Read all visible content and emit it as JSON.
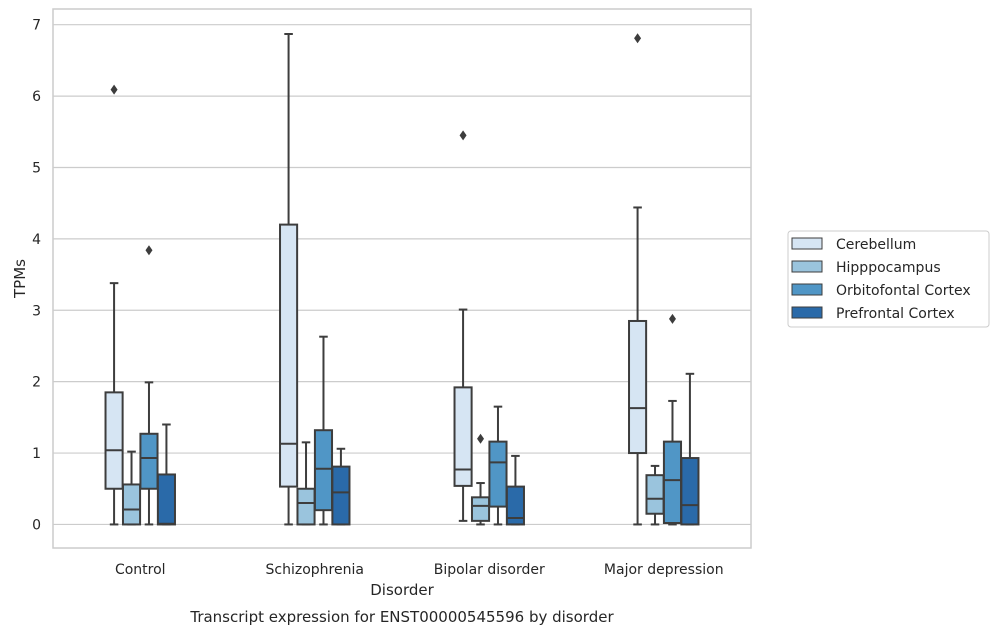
{
  "chart_data": {
    "type": "boxplot",
    "title": "Transcript expression for ENST00000545596 by disorder",
    "xlabel": "Disorder",
    "ylabel": "TPMs",
    "ylim": [
      -0.33,
      7.22
    ],
    "yticks": [
      0,
      1,
      2,
      3,
      4,
      5,
      6,
      7
    ],
    "categories": [
      "Control",
      "Schizophrenia",
      "Bipolar disorder",
      "Major depression"
    ],
    "grid": "horizontal",
    "legend_position": "right",
    "series": [
      {
        "name": "Cerebellum",
        "color": "#d6e5f3",
        "boxes": [
          {
            "whislo": 0.0,
            "q1": 0.5,
            "med": 1.04,
            "q3": 1.85,
            "whishi": 3.38,
            "fliers": [
              6.09
            ]
          },
          {
            "whislo": 0.0,
            "q1": 0.53,
            "med": 1.13,
            "q3": 4.2,
            "whishi": 6.87,
            "fliers": []
          },
          {
            "whislo": 0.05,
            "q1": 0.54,
            "med": 0.77,
            "q3": 1.92,
            "whishi": 3.01,
            "fliers": [
              5.45
            ]
          },
          {
            "whislo": 0.0,
            "q1": 1.0,
            "med": 1.63,
            "q3": 2.85,
            "whishi": 4.44,
            "fliers": [
              6.81
            ]
          }
        ]
      },
      {
        "name": "Hipppocampus",
        "color": "#9ac4dd",
        "boxes": [
          {
            "whislo": 0.0,
            "q1": 0.0,
            "med": 0.21,
            "q3": 0.56,
            "whishi": 1.02,
            "fliers": []
          },
          {
            "whislo": 0.0,
            "q1": 0.0,
            "med": 0.3,
            "q3": 0.5,
            "whishi": 1.15,
            "fliers": []
          },
          {
            "whislo": 0.0,
            "q1": 0.05,
            "med": 0.26,
            "q3": 0.38,
            "whishi": 0.58,
            "fliers": [
              1.2
            ]
          },
          {
            "whislo": 0.0,
            "q1": 0.15,
            "med": 0.36,
            "q3": 0.69,
            "whishi": 0.82,
            "fliers": []
          }
        ]
      },
      {
        "name": "Orbitofontal Cortex",
        "color": "#5096c6",
        "boxes": [
          {
            "whislo": 0.0,
            "q1": 0.5,
            "med": 0.93,
            "q3": 1.27,
            "whishi": 1.99,
            "fliers": [
              3.84
            ]
          },
          {
            "whislo": 0.0,
            "q1": 0.2,
            "med": 0.78,
            "q3": 1.32,
            "whishi": 2.63,
            "fliers": []
          },
          {
            "whislo": 0.0,
            "q1": 0.25,
            "med": 0.87,
            "q3": 1.16,
            "whishi": 1.65,
            "fliers": []
          },
          {
            "whislo": 0.0,
            "q1": 0.02,
            "med": 0.62,
            "q3": 1.16,
            "whishi": 1.73,
            "fliers": [
              2.88
            ]
          }
        ]
      },
      {
        "name": "Prefrontal Cortex",
        "color": "#2a6aa9",
        "boxes": [
          {
            "whislo": 0.0,
            "q1": 0.0,
            "med": 0.01,
            "q3": 0.7,
            "whishi": 1.4,
            "fliers": []
          },
          {
            "whislo": 0.0,
            "q1": 0.0,
            "med": 0.45,
            "q3": 0.81,
            "whishi": 1.06,
            "fliers": []
          },
          {
            "whislo": 0.0,
            "q1": 0.0,
            "med": 0.09,
            "q3": 0.53,
            "whishi": 0.96,
            "fliers": []
          },
          {
            "whislo": 0.0,
            "q1": 0.0,
            "med": 0.27,
            "q3": 0.93,
            "whishi": 2.11,
            "fliers": []
          }
        ]
      }
    ]
  }
}
